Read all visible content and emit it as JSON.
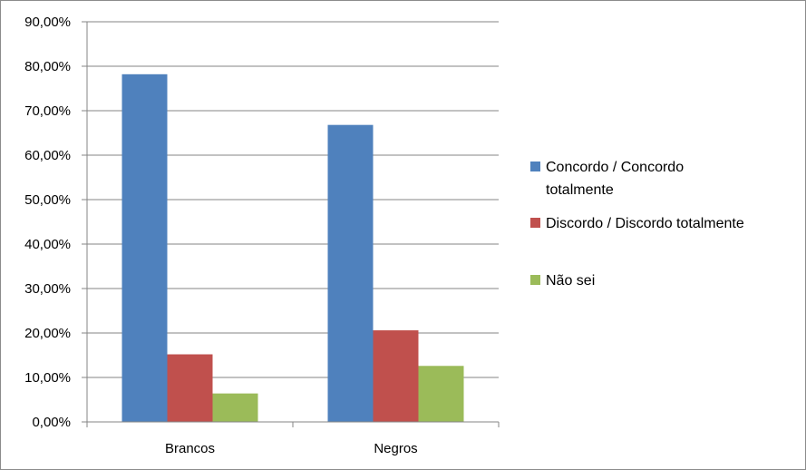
{
  "chart_data": {
    "type": "bar",
    "title": "",
    "xlabel": "",
    "ylabel": "",
    "categories": [
      "Brancos",
      "Negros"
    ],
    "series": [
      {
        "name": "Concordo / Concordo totalmente",
        "values": [
          78.2,
          66.8
        ],
        "color": "#4f81bd"
      },
      {
        "name": "Discordo / Discordo totalmente",
        "values": [
          15.2,
          20.6
        ],
        "color": "#c0504d"
      },
      {
        "name": "Não sei",
        "values": [
          6.4,
          12.6
        ],
        "color": "#9bbb59"
      }
    ],
    "ylim": [
      0,
      90
    ],
    "yticks": [
      "0,00%",
      "10,00%",
      "20,00%",
      "30,00%",
      "40,00%",
      "50,00%",
      "60,00%",
      "70,00%",
      "80,00%",
      "90,00%"
    ],
    "grid": true,
    "legend_position": "right"
  }
}
